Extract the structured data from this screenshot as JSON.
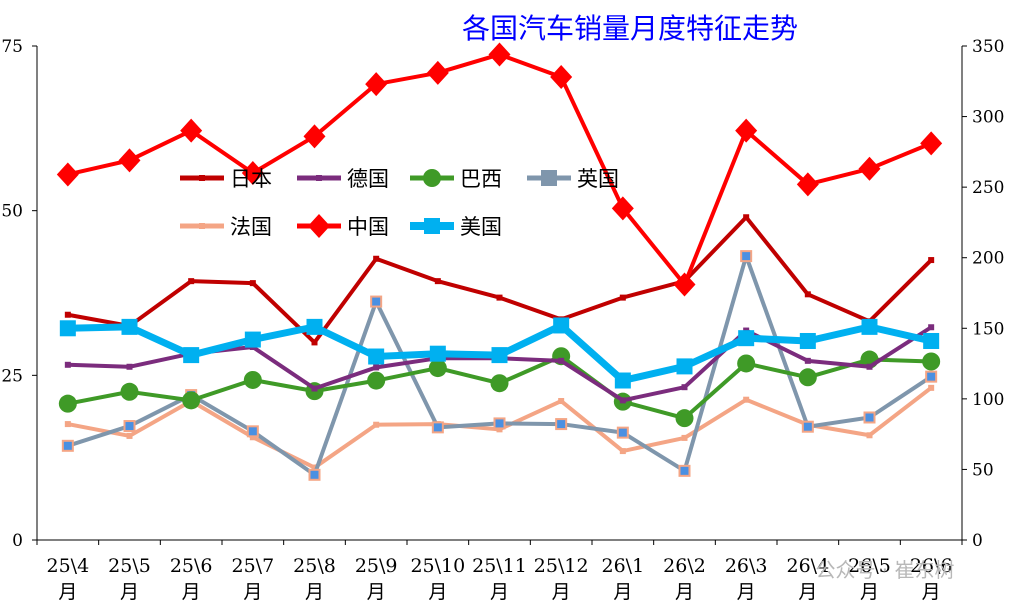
{
  "colors": {
    "日本": "#c00000",
    "德国": "#7b2c7d",
    "巴西": "#3f9a27",
    "英国": "#7f96ac",
    "法国": "#f4a585",
    "中国": "#ff0000",
    "美国": "#00b0f0"
  },
  "watermark": "公众号 · 崔东树",
  "chart_data": {
    "type": "line",
    "title": "各国汽车销量月度特征走势",
    "categories": [
      "25\\4月",
      "25\\5月",
      "25\\6月",
      "25\\7月",
      "25\\8月",
      "25\\9月",
      "25\\10月",
      "25\\11月",
      "25\\12月",
      "26\\1月",
      "26\\2月",
      "26\\3月",
      "26\\4月",
      "26\\5月",
      "26\\6月"
    ],
    "x_tick_lines": [
      [
        "25\\4",
        "月"
      ],
      [
        "25\\5",
        "月"
      ],
      [
        "25\\6",
        "月"
      ],
      [
        "25\\7",
        "月"
      ],
      [
        "25\\8",
        "月"
      ],
      [
        "25\\9",
        "月"
      ],
      [
        "25\\10",
        "月"
      ],
      [
        "25\\11",
        "月"
      ],
      [
        "25\\12",
        "月"
      ],
      [
        "26\\1",
        "月"
      ],
      [
        "26\\2",
        "月"
      ],
      [
        "26\\3",
        "月"
      ],
      [
        "26\\4",
        "月"
      ],
      [
        "26\\5",
        "月"
      ],
      [
        "26\\6",
        "月"
      ]
    ],
    "y_left": {
      "min": 0,
      "max": 75,
      "ticks": [
        0,
        25,
        50,
        75
      ]
    },
    "y_right": {
      "min": 0,
      "max": 350,
      "ticks": [
        0,
        50,
        100,
        150,
        200,
        250,
        300,
        350
      ]
    },
    "grid": false,
    "legend": "upper-left, inside plot",
    "series": [
      {
        "name": "日本",
        "axis": "left",
        "marker": "dash",
        "values": [
          34.2,
          32.5,
          39.3,
          39.0,
          30.0,
          42.7,
          39.3,
          36.8,
          33.5,
          36.8,
          39.3,
          49.0,
          37.3,
          33.2,
          42.5
        ]
      },
      {
        "name": "德国",
        "axis": "left",
        "marker": "dash",
        "values": [
          26.6,
          26.3,
          28.3,
          29.3,
          23.0,
          26.2,
          27.6,
          27.6,
          27.2,
          21.2,
          23.2,
          31.8,
          27.2,
          26.3,
          32.3
        ]
      },
      {
        "name": "巴西",
        "axis": "left",
        "marker": "circle",
        "values": [
          20.7,
          22.5,
          21.2,
          24.3,
          22.6,
          24.2,
          26.1,
          23.8,
          27.9,
          21.0,
          18.5,
          26.8,
          24.7,
          27.4,
          27.1
        ]
      },
      {
        "name": "英国",
        "axis": "left",
        "marker": "square",
        "values": [
          14.3,
          17.3,
          22.0,
          16.5,
          9.9,
          36.2,
          17.1,
          17.7,
          17.6,
          16.3,
          10.5,
          43.1,
          17.2,
          18.6,
          24.8
        ]
      },
      {
        "name": "法国",
        "axis": "left",
        "marker": "dash",
        "values": [
          17.6,
          15.8,
          21.1,
          15.6,
          11.0,
          17.5,
          17.6,
          16.8,
          21.1,
          13.5,
          15.5,
          21.3,
          17.5,
          15.9,
          23.1
        ]
      },
      {
        "name": "中国",
        "axis": "right",
        "marker": "diamond",
        "values": [
          259,
          269,
          290,
          260,
          286,
          323,
          331,
          344,
          328,
          235,
          181,
          290,
          252,
          263,
          281
        ]
      },
      {
        "name": "美国",
        "axis": "right",
        "marker": "square",
        "values": [
          150,
          151,
          131,
          142,
          151,
          130,
          132,
          131,
          152,
          113,
          123,
          143,
          141,
          151,
          141
        ]
      }
    ],
    "legend_rows": [
      [
        "日本",
        "德国",
        "巴西",
        "英国"
      ],
      [
        "法国",
        "中国",
        "美国"
      ]
    ]
  }
}
